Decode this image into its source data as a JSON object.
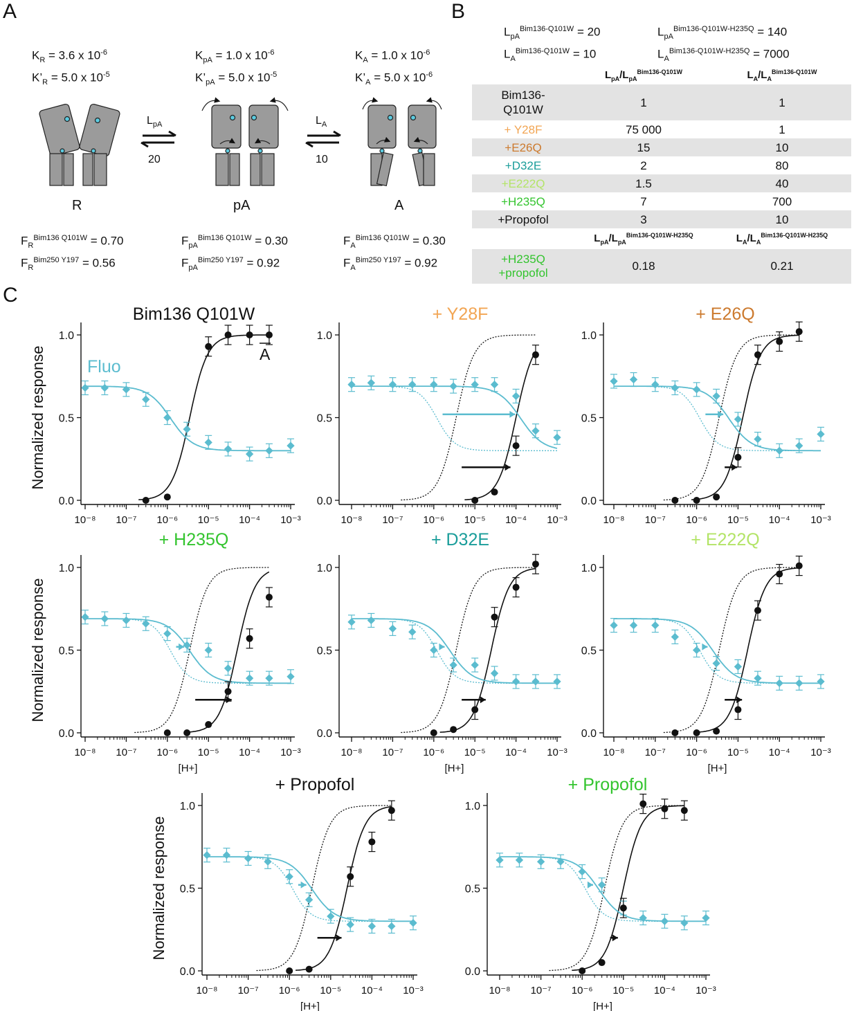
{
  "colors": {
    "black": "#111111",
    "fluo": "#5bbccf",
    "gray_fill": "#9b9b9b",
    "row_shade": "#e3e3e3",
    "orange_light": "#f2a553",
    "orange_dark": "#cc7a2e",
    "teal": "#1a9d9a",
    "lime": "#b3e467",
    "green": "#33c42e"
  },
  "panel_a": {
    "letter": "A",
    "states": [
      {
        "label": "R",
        "K": "K",
        "K_sub": "R",
        "K_val": "= 3.6 x 10",
        "K_exp": "-6",
        "Kp": "K’",
        "Kp_sub": "R",
        "Kp_val": "= 5.0 x 10",
        "Kp_exp": "-5",
        "F1_sub": "R",
        "F1_sup": "Bim136 Q101W",
        "F1_val": "= 0.70",
        "F2_sub": "R",
        "F2_sup": "Bim250 Y197",
        "F2_val": "= 0.56"
      },
      {
        "label": "pA",
        "K": "K",
        "K_sub": "pA",
        "K_val": "= 1.0 x 10",
        "K_exp": "-6",
        "Kp": "K’",
        "Kp_sub": "pA",
        "Kp_val": "= 5.0 x 10",
        "Kp_exp": "-5",
        "F1_sub": "pA",
        "F1_sup": "Bim136 Q101W",
        "F1_val": "= 0.30",
        "F2_sub": "pA",
        "F2_sup": "Bim250 Y197",
        "F2_val": "= 0.92"
      },
      {
        "label": "A",
        "K": "K",
        "K_sub": "A",
        "K_val": "= 1.0 x 10",
        "K_exp": "-6",
        "Kp": "K’",
        "Kp_sub": "A",
        "Kp_val": "= 5.0 x 10",
        "Kp_exp": "-6",
        "F1_sub": "A",
        "F1_sup": "Bim136 Q101W",
        "F1_val": "= 0.30",
        "F2_sub": "A",
        "F2_sup": "Bim250 Y197",
        "F2_val": "= 0.92"
      }
    ],
    "transitions": [
      {
        "top": "L",
        "top_sub": "pA",
        "bottom": "20"
      },
      {
        "top": "L",
        "top_sub": "A",
        "bottom": "10"
      }
    ],
    "F_letter": "F"
  },
  "panel_b": {
    "letter": "B",
    "constants": [
      {
        "sym": "L",
        "sub": "pA",
        "sup": "Bim136-Q101W",
        "val": "= 20"
      },
      {
        "sym": "L",
        "sub": "A",
        "sup": "Bim136-Q101W",
        "val": "= 10"
      },
      {
        "sym": "L",
        "sub": "pA",
        "sup": "Bim136-Q101W-H235Q",
        "val": "= 140"
      },
      {
        "sym": "L",
        "sub": "A",
        "sup": "Bim136-Q101W-H235Q",
        "val": "= 7000"
      }
    ],
    "headers1": [
      {
        "a": "L",
        "a_sub": "pA",
        "b": "/L",
        "b_sub": "pA",
        "sup": "Bim136-Q101W"
      },
      {
        "a": "L",
        "a_sub": "A",
        "b": "/L",
        "b_sub": "A",
        "sup": "Bim136-Q101W"
      }
    ],
    "rows": [
      {
        "name": "Bim136-\nQ101W",
        "v1": "1",
        "v2": "1",
        "color": "#111111",
        "shade": true
      },
      {
        "name": "+ Y28F",
        "v1": "75 000",
        "v2": "1",
        "color": "#f2a553",
        "shade": false
      },
      {
        "name": "+E26Q",
        "v1": "15",
        "v2": "10",
        "color": "#cc7a2e",
        "shade": true
      },
      {
        "name": "+D32E",
        "v1": "2",
        "v2": "80",
        "color": "#1a9d9a",
        "shade": false
      },
      {
        "name": "+E222Q",
        "v1": "1.5",
        "v2": "40",
        "color": "#b3e467",
        "shade": true
      },
      {
        "name": "+H235Q",
        "v1": "7",
        "v2": "700",
        "color": "#33c42e",
        "shade": false
      },
      {
        "name": "+Propofol",
        "v1": "3",
        "v2": "10",
        "color": "#111111",
        "shade": true
      }
    ],
    "headers2": [
      {
        "a": "L",
        "a_sub": "pA",
        "b": "/L",
        "b_sub": "pA",
        "sup": "Bim136-Q101W-H235Q"
      },
      {
        "a": "L",
        "a_sub": "A",
        "b": "/L",
        "b_sub": "A",
        "sup": "Bim136-Q101W-H235Q"
      }
    ],
    "last_row": {
      "name": "+H235Q\n+propofol",
      "v1": "0.18",
      "v2": "0.21",
      "color": "#33c42e"
    }
  },
  "panel_c": {
    "letter": "C",
    "ylabel": "Normalized response",
    "xlabel": "[H+]",
    "fluo_label": "Fluo",
    "a_bar_label": "A"
  },
  "chart_data": [
    {
      "type": "scatter",
      "title": "Bim136 Q101W",
      "title_color": "#111111",
      "x_scale": "log",
      "xlim": [
        1e-08,
        0.001
      ],
      "ylim": [
        0,
        1.05
      ],
      "series": [
        {
          "name": "A",
          "x": [
            3e-07,
            1e-06,
            1e-05,
            3e-05,
            0.0001,
            0.0003
          ],
          "y": [
            0,
            0.02,
            0.93,
            1.0,
            1.0,
            1.0
          ],
          "fit_ec50": 3.5e-06,
          "fit_n": 2,
          "fit_top": 1.0,
          "fit_bottom": 0
        },
        {
          "name": "Fluo",
          "x": [
            1e-08,
            3e-08,
            1e-07,
            3e-07,
            1e-06,
            3e-06,
            1e-05,
            3e-05,
            0.0001,
            0.0003,
            0.001
          ],
          "y": [
            0.68,
            0.68,
            0.67,
            0.61,
            0.5,
            0.43,
            0.35,
            0.31,
            0.28,
            0.3,
            0.33
          ],
          "fit_ec50": 1.2e-06,
          "fit_top": 0.68,
          "fit_bottom": 0.3
        }
      ]
    },
    {
      "type": "scatter",
      "title": "+ Y28F",
      "title_color": "#f2a553",
      "x_scale": "log",
      "xlim": [
        1e-08,
        0.001
      ],
      "ylim": [
        0,
        1.05
      ],
      "series": [
        {
          "name": "A",
          "x": [
            1e-05,
            3e-05,
            0.0001,
            0.0003
          ],
          "y": [
            0,
            0.05,
            0.33,
            0.88
          ],
          "fit_ec50": 0.0001
        },
        {
          "name": "Fluo",
          "x": [
            1e-08,
            3e-08,
            1e-07,
            3e-07,
            1e-06,
            3e-06,
            1e-05,
            3e-05,
            0.0001,
            0.0003,
            0.001
          ],
          "y": [
            0.7,
            0.71,
            0.7,
            0.7,
            0.7,
            0.69,
            0.7,
            0.7,
            0.63,
            0.42,
            0.38
          ],
          "fit_ec50": 0.00013
        }
      ]
    },
    {
      "type": "scatter",
      "title": "+ E26Q",
      "title_color": "#cc7a2e",
      "x_scale": "log",
      "xlim": [
        1e-08,
        0.001
      ],
      "ylim": [
        0,
        1.05
      ],
      "series": [
        {
          "name": "A",
          "x": [
            3e-07,
            1e-06,
            3e-06,
            1e-05,
            3e-05,
            0.0001,
            0.0003
          ],
          "y": [
            0,
            0,
            0.02,
            0.26,
            0.88,
            0.96,
            1.02
          ],
          "fit_ec50": 1.3e-05
        },
        {
          "name": "Fluo",
          "x": [
            1e-08,
            3e-08,
            1e-07,
            3e-07,
            1e-06,
            3e-06,
            1e-05,
            3e-05,
            0.0001,
            0.0003,
            0.001
          ],
          "y": [
            0.72,
            0.73,
            0.7,
            0.68,
            0.67,
            0.63,
            0.49,
            0.37,
            0.3,
            0.33,
            0.4
          ],
          "fit_ec50": 6e-06
        }
      ]
    },
    {
      "type": "scatter",
      "title": "+ H235Q",
      "title_color": "#33c42e",
      "x_scale": "log",
      "xlim": [
        1e-08,
        0.001
      ],
      "ylim": [
        0,
        1.05
      ],
      "series": [
        {
          "name": "A",
          "x": [
            1e-06,
            3e-06,
            1e-05,
            3e-05,
            0.0001,
            0.0003
          ],
          "y": [
            0,
            0,
            0.05,
            0.25,
            0.57,
            0.82
          ],
          "fit_ec50": 5e-05
        },
        {
          "name": "Fluo",
          "x": [
            1e-08,
            3e-08,
            1e-07,
            3e-07,
            1e-06,
            3e-06,
            1e-05,
            3e-05,
            0.0001,
            0.0003,
            0.001
          ],
          "y": [
            0.7,
            0.69,
            0.68,
            0.66,
            0.6,
            0.53,
            0.5,
            0.39,
            0.33,
            0.33,
            0.34
          ],
          "fit_ec50": 3.5e-06
        }
      ]
    },
    {
      "type": "scatter",
      "title": "+ D32E",
      "title_color": "#1a9d9a",
      "x_scale": "log",
      "xlim": [
        1e-08,
        0.001
      ],
      "ylim": [
        0,
        1.05
      ],
      "series": [
        {
          "name": "A",
          "x": [
            1e-06,
            3e-06,
            1e-05,
            3e-05,
            0.0001,
            0.0003
          ],
          "y": [
            0,
            0.02,
            0.14,
            0.7,
            0.88,
            1.02
          ],
          "fit_ec50": 2.5e-05
        },
        {
          "name": "Fluo",
          "x": [
            1e-08,
            3e-08,
            1e-07,
            3e-07,
            1e-06,
            3e-06,
            1e-05,
            3e-05,
            0.0001,
            0.0003,
            0.001
          ],
          "y": [
            0.67,
            0.68,
            0.63,
            0.61,
            0.5,
            0.41,
            0.41,
            0.36,
            0.31,
            0.31,
            0.31
          ],
          "fit_ec50": 2.5e-06
        }
      ]
    },
    {
      "type": "scatter",
      "title": "+ E222Q",
      "title_color": "#b3e467",
      "x_scale": "log",
      "xlim": [
        1e-08,
        0.001
      ],
      "ylim": [
        0,
        1.05
      ],
      "series": [
        {
          "name": "A",
          "x": [
            3e-07,
            1e-06,
            3e-06,
            1e-05,
            3e-05,
            0.0001,
            0.0003
          ],
          "y": [
            0,
            0,
            0.01,
            0.14,
            0.74,
            0.96,
            1.01
          ],
          "fit_ec50": 1.7e-05
        },
        {
          "name": "Fluo",
          "x": [
            1e-08,
            3e-08,
            1e-07,
            3e-07,
            1e-06,
            3e-06,
            1e-05,
            3e-05,
            0.0001,
            0.0003,
            0.001
          ],
          "y": [
            0.65,
            0.65,
            0.65,
            0.58,
            0.5,
            0.42,
            0.4,
            0.33,
            0.3,
            0.3,
            0.31
          ],
          "fit_ec50": 2.5e-06
        }
      ]
    },
    {
      "type": "scatter",
      "title": "+ Propofol",
      "title_color": "#111111",
      "x_scale": "log",
      "xlim": [
        1e-08,
        0.001
      ],
      "ylim": [
        0,
        1.05
      ],
      "series": [
        {
          "name": "A",
          "x": [
            1e-06,
            3e-06,
            3e-05,
            0.0001,
            0.0003
          ],
          "y": [
            0,
            0.01,
            0.57,
            0.78,
            0.97
          ],
          "fit_ec50": 2.5e-05
        },
        {
          "name": "Fluo",
          "x": [
            1e-08,
            3e-08,
            1e-07,
            3e-07,
            1e-06,
            3e-06,
            1e-05,
            3e-05,
            0.0001,
            0.0003,
            0.001
          ],
          "y": [
            0.7,
            0.7,
            0.68,
            0.66,
            0.57,
            0.43,
            0.33,
            0.28,
            0.27,
            0.27,
            0.29
          ],
          "fit_ec50": 3.5e-06
        }
      ]
    },
    {
      "type": "scatter",
      "title": "+ Propofol",
      "title_color": "#33c42e",
      "x_scale": "log",
      "xlim": [
        1e-08,
        0.001
      ],
      "ylim": [
        0,
        1.05
      ],
      "series": [
        {
          "name": "A",
          "x": [
            1e-06,
            3e-06,
            1e-05,
            3e-05,
            0.0001,
            0.0003
          ],
          "y": [
            0,
            0.05,
            0.38,
            1.01,
            0.98,
            0.97
          ],
          "fit_ec50": 1e-05
        },
        {
          "name": "Fluo",
          "x": [
            1e-08,
            3e-08,
            1e-07,
            3e-07,
            1e-06,
            3e-06,
            1e-05,
            3e-05,
            0.0001,
            0.0003,
            0.001
          ],
          "y": [
            0.67,
            0.67,
            0.66,
            0.66,
            0.6,
            0.52,
            0.38,
            0.32,
            0.3,
            0.29,
            0.32
          ],
          "fit_ec50": 2.5e-06
        }
      ]
    }
  ]
}
